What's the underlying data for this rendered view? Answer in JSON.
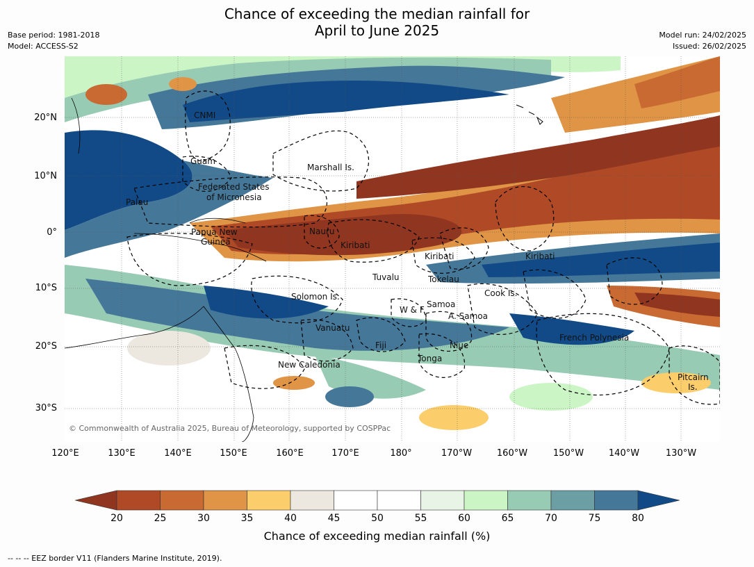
{
  "title_line1": "Chance of exceeding the median rainfall for",
  "title_line2": "April to June 2025",
  "base_period": "Base period: 1981-2018",
  "model": "Model: ACCESS-S2",
  "model_run": "Model run: 24/02/2025",
  "issued": "Issued: 26/02/2025",
  "lat_ticks": [
    "20°N",
    "10°N",
    "0°",
    "10°S",
    "20°S",
    "30°S"
  ],
  "lon_ticks": [
    "120°E",
    "130°E",
    "140°E",
    "150°E",
    "160°E",
    "170°E",
    "180°",
    "170°W",
    "160°W",
    "150°W",
    "140°W",
    "130°W"
  ],
  "region_labels": {
    "cnmi": "CNMI",
    "guam": "Guam",
    "marshall": "Marshall Is.",
    "fsm1": "Federated States",
    "fsm2": "of Micronesia",
    "palau": "Palau",
    "png1": "Papua New",
    "png2": "Guinea",
    "nauru": "Nauru",
    "kiribati_w": "Kiribati",
    "kiribati_c": "Kiribati",
    "kiribati_e": "Kiribati",
    "tuvalu": "Tuvalu",
    "tokelau": "Tokelau",
    "solomon": "Solomon Is.",
    "cook": "Cook Is.",
    "wf": "W & F",
    "samoa": "Samoa",
    "asamoa": "A. Samoa",
    "vanuatu": "Vanuatu",
    "fiji": "Fiji",
    "niue": "Niue",
    "tonga": "Tonga",
    "frpoly": "French Polynesia",
    "newcal": "New Caledonia",
    "pitcairn1": "Pitcairn",
    "pitcairn2": "Is."
  },
  "copyright": "© Commonwealth of Australia 2025, Bureau of Meteorology, supported by COSPPac",
  "colorbar": {
    "title": "Chance of exceeding median rainfall (%)",
    "ticks": [
      "20",
      "25",
      "30",
      "35",
      "40",
      "45",
      "50",
      "55",
      "60",
      "65",
      "70",
      "75",
      "80"
    ],
    "colors": [
      "#8f3520",
      "#b04a26",
      "#c86a32",
      "#e09446",
      "#fbcd6b",
      "#ece8e0",
      "#ffffff",
      "#ffffff",
      "#e8f5e6",
      "#ccf5c6",
      "#98cbb4",
      "#6c9fa3",
      "#457799",
      "#114a86"
    ]
  },
  "footnote": "--  --  -- EEZ border V11 (Flanders Marine Institute, 2019)."
}
